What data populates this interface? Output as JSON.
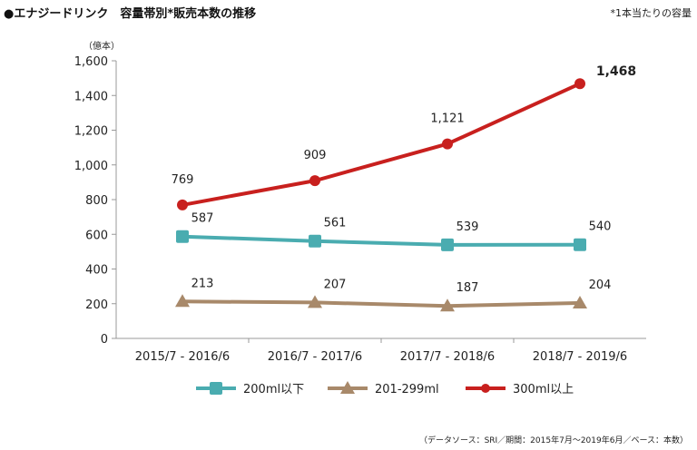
{
  "chart_data": {
    "type": "line",
    "title": "●エナジードリンク　容量帯別*販売本数の推移",
    "note": "*1本当たりの容量",
    "ylabel": "（億本）",
    "source": "（データソース：SRI／期間：2015年7月～2019年6月／ベース：本数）",
    "categories": [
      "2015/7 - 2016/6",
      "2016/7 - 2017/6",
      "2017/7 - 2018/6",
      "2018/7 - 2019/6"
    ],
    "ylim": [
      0,
      1600
    ],
    "yticks": [
      0,
      200,
      400,
      600,
      800,
      1000,
      1200,
      1400,
      1600
    ],
    "ytick_labels": [
      "0",
      "200",
      "400",
      "600",
      "800",
      "1,000",
      "1,200",
      "1,400",
      "1,600"
    ],
    "grid": false,
    "legend_position": "bottom",
    "series": [
      {
        "name": "200ml以下",
        "values": [
          587,
          561,
          539,
          540
        ],
        "labels": [
          "587",
          "561",
          "539",
          "540"
        ],
        "color": "#4aacb0",
        "marker": "square"
      },
      {
        "name": "201-299ml",
        "values": [
          213,
          207,
          187,
          204
        ],
        "labels": [
          "213",
          "207",
          "187",
          "204"
        ],
        "color": "#a8896a",
        "marker": "triangle"
      },
      {
        "name": "300ml以上",
        "values": [
          769,
          909,
          1121,
          1468
        ],
        "labels": [
          "769",
          "909",
          "1,121",
          "1,468"
        ],
        "color": "#c8201e",
        "marker": "circle"
      }
    ]
  }
}
